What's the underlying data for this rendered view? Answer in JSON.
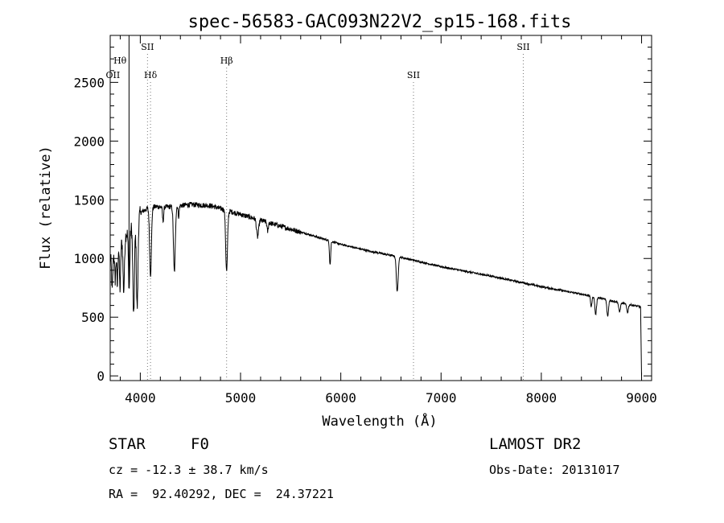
{
  "chart_data": {
    "type": "line",
    "title": "spec-56583-GAC093N22V2_sp15-168.fits",
    "xlabel": "Wavelength (Å)",
    "ylabel": "Flux (relative)",
    "xlim": [
      3700,
      9100
    ],
    "ylim": [
      -40,
      2900
    ],
    "x_ticks": [
      4000,
      5000,
      6000,
      7000,
      8000,
      9000
    ],
    "x_tick_labels": [
      "4000",
      "5000",
      "6000",
      "7000",
      "8000",
      "9000"
    ],
    "y_ticks": [
      0,
      500,
      1000,
      1500,
      2000,
      2500
    ],
    "y_tick_labels": [
      "0",
      "500",
      "1000",
      "1500",
      "2000",
      "2500"
    ],
    "grid": false,
    "line_color": "#000000",
    "series": [
      {
        "continuum": [
          [
            3700,
            1000
          ],
          [
            3760,
            1080
          ],
          [
            3820,
            1150
          ],
          [
            3870,
            1220
          ],
          [
            3950,
            1320
          ],
          [
            4000,
            1390
          ],
          [
            4100,
            1440
          ],
          [
            4300,
            1440
          ],
          [
            4500,
            1460
          ],
          [
            4700,
            1450
          ],
          [
            4900,
            1400
          ],
          [
            5100,
            1350
          ],
          [
            5300,
            1300
          ],
          [
            5500,
            1250
          ],
          [
            5700,
            1200
          ],
          [
            6000,
            1120
          ],
          [
            6300,
            1060
          ],
          [
            6600,
            1010
          ],
          [
            7000,
            930
          ],
          [
            7500,
            850
          ],
          [
            8000,
            760
          ],
          [
            8500,
            680
          ],
          [
            8800,
            620
          ],
          [
            8980,
            590
          ]
        ],
        "absorption_lines": [
          {
            "wave": 3720,
            "depth": 300,
            "width": 6
          },
          {
            "wave": 3750,
            "depth": 250,
            "width": 6
          },
          {
            "wave": 3771,
            "depth": 330,
            "width": 5
          },
          {
            "wave": 3798,
            "depth": 380,
            "width": 6
          },
          {
            "wave": 3835,
            "depth": 450,
            "width": 7
          },
          {
            "wave": 3889,
            "depth": 500,
            "width": 7
          },
          {
            "wave": 3934,
            "depth": 800,
            "width": 8
          },
          {
            "wave": 3969,
            "depth": 760,
            "width": 8
          },
          {
            "wave": 4102,
            "depth": 580,
            "width": 9
          },
          {
            "wave": 4227,
            "depth": 120,
            "width": 6
          },
          {
            "wave": 4340,
            "depth": 560,
            "width": 9
          },
          {
            "wave": 4383,
            "depth": 90,
            "width": 5
          },
          {
            "wave": 4861,
            "depth": 520,
            "width": 9
          },
          {
            "wave": 5170,
            "depth": 150,
            "width": 10
          },
          {
            "wave": 5270,
            "depth": 80,
            "width": 6
          },
          {
            "wave": 5893,
            "depth": 200,
            "width": 6
          },
          {
            "wave": 6563,
            "depth": 300,
            "width": 9
          },
          {
            "wave": 8498,
            "depth": 90,
            "width": 7
          },
          {
            "wave": 8542,
            "depth": 150,
            "width": 8
          },
          {
            "wave": 8662,
            "depth": 140,
            "width": 8
          },
          {
            "wave": 8780,
            "depth": 80,
            "width": 8
          },
          {
            "wave": 8860,
            "depth": 70,
            "width": 8
          }
        ],
        "spike": {
          "wave": 3888,
          "top": 2900
        },
        "dropoff": {
          "start": 8990,
          "end": 9000
        }
      }
    ],
    "line_markers": [
      {
        "label": "OII",
        "wave": 3727,
        "row": "low",
        "line": false
      },
      {
        "label": "Hθ",
        "wave": 3798,
        "row": "mid",
        "line": false
      },
      {
        "label": "SII",
        "wave": 4072,
        "row": "high",
        "line": true
      },
      {
        "label": "Hδ",
        "wave": 4102,
        "row": "low",
        "line": true
      },
      {
        "label": "Hβ",
        "wave": 4861,
        "row": "mid",
        "line": true
      },
      {
        "label": "SII",
        "wave": 6725,
        "row": "low",
        "line": true
      },
      {
        "label": "SII",
        "wave": 7820,
        "row": "high",
        "line": true
      }
    ]
  },
  "info": {
    "object_class": "STAR",
    "subclass": "F0",
    "survey": "LAMOST DR2",
    "redshift": "cz = -12.3 ± 38.7 km/s",
    "obs_date": "Obs-Date: 20131017",
    "coords": "RA =  92.40292, DEC =  24.37221"
  }
}
